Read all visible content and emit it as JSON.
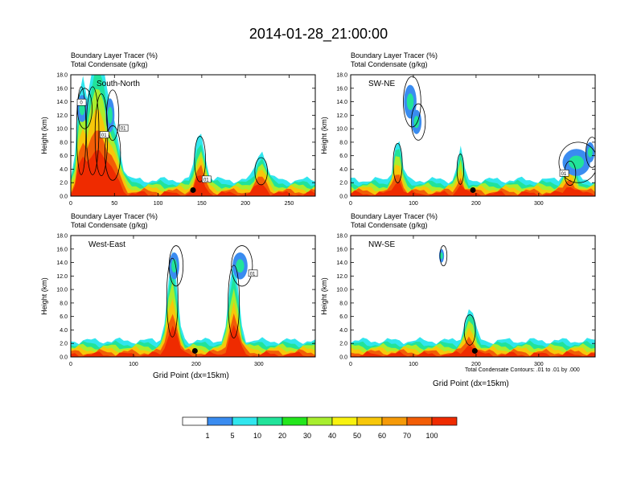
{
  "figure_title": "2014-01-28_21:00:00",
  "panel_header": {
    "line1": "Boundary Layer Tracer   (%)",
    "line2": "Total Condensate   (g/kg)"
  },
  "footnote": "Total Condensate Contours: .01 to .01 by .000",
  "colorbar": {
    "labels": [
      "1",
      "5",
      "10",
      "20",
      "30",
      "40",
      "50",
      "60",
      "70",
      "100"
    ],
    "colors": [
      "#ffffff",
      "#3a8cf0",
      "#31e6ee",
      "#21e39a",
      "#23e61c",
      "#a8ee2e",
      "#f8f20f",
      "#f7c70a",
      "#f59a08",
      "#f25d06",
      "#ef2b00"
    ]
  },
  "chart_data": [
    {
      "type": "heatmap",
      "name": "South-North",
      "label": "South-North",
      "ylabel": "Height (km)",
      "xlabel": "",
      "ylim": [
        0,
        18
      ],
      "xlim": [
        0,
        280
      ],
      "xticks": [
        0,
        50,
        100,
        150,
        200,
        250
      ],
      "xtick_labels": [
        "0",
        "50",
        "100",
        "150",
        "200",
        "250"
      ],
      "yticks": [
        0,
        2,
        4,
        6,
        8,
        10,
        12,
        14,
        16,
        18
      ],
      "ytick_labels": [
        "0.0",
        "2.0",
        "4.0",
        "6.0",
        "8.0",
        "10.0",
        "12.0",
        "14.0",
        "16.0",
        "18.0"
      ],
      "marker_x": 140,
      "plumes": [
        {
          "x": 12,
          "w": 6,
          "h": 14.5
        },
        {
          "x": 25,
          "w": 8,
          "h": 14.5
        },
        {
          "x": 35,
          "w": 8,
          "h": 13.5
        },
        {
          "x": 48,
          "w": 10,
          "h": 9
        },
        {
          "x": 148,
          "w": 7,
          "h": 7.5
        },
        {
          "x": 218,
          "w": 8,
          "h": 4.5
        }
      ],
      "clouds": [
        {
          "x": 13,
          "y": 13,
          "rx": 6,
          "ry": 2,
          "c": "#3a8cf0"
        },
        {
          "x": 45,
          "y": 12,
          "rx": 5,
          "ry": 2.5,
          "c": "#3a8cf0"
        }
      ],
      "contour_labels": [
        {
          "x": 12,
          "y": 13.8,
          "t": "0"
        },
        {
          "x": 38,
          "y": 9,
          "t": "01"
        },
        {
          "x": 60,
          "y": 10,
          "t": "01"
        },
        {
          "x": 155,
          "y": 2.4,
          "t": "01"
        }
      ]
    },
    {
      "type": "heatmap",
      "name": "SW-NE",
      "label": "SW-NE",
      "ylabel": "Height (km)",
      "xlabel": "",
      "ylim": [
        0,
        18
      ],
      "xlim": [
        0,
        390
      ],
      "xticks": [
        0,
        100,
        200,
        300
      ],
      "xtick_labels": [
        "0",
        "100",
        "200",
        "300"
      ],
      "yticks": [
        0,
        2,
        4,
        6,
        8,
        10,
        12,
        14,
        16,
        18
      ],
      "ytick_labels": [
        "0.0",
        "2.0",
        "4.0",
        "6.0",
        "8.0",
        "10.0",
        "12.0",
        "14.0",
        "16.0",
        "18.0"
      ],
      "marker_x": 195,
      "plumes": [
        {
          "x": 75,
          "w": 8,
          "h": 6.5
        },
        {
          "x": 175,
          "w": 6,
          "h": 5
        },
        {
          "x": 350,
          "w": 10,
          "h": 4
        }
      ],
      "clouds": [
        {
          "x": 95,
          "y": 14,
          "rx": 10,
          "ry": 2.5,
          "c": "#3a8cf0"
        },
        {
          "x": 105,
          "y": 11,
          "rx": 8,
          "ry": 1.8,
          "c": "#3a8cf0"
        },
        {
          "x": 360,
          "y": 5,
          "rx": 22,
          "ry": 2,
          "c": "#3a8cf0"
        },
        {
          "x": 382,
          "y": 6.5,
          "rx": 7,
          "ry": 1.5,
          "c": "#3a8cf0"
        }
      ],
      "contour_labels": [
        {
          "x": 340,
          "y": 3.3,
          "t": "01"
        }
      ]
    },
    {
      "type": "heatmap",
      "name": "West-East",
      "label": "West-East",
      "ylabel": "Height (km)",
      "xlabel": "Grid Point (dx=15km)",
      "ylim": [
        0,
        18
      ],
      "xlim": [
        0,
        390
      ],
      "xticks": [
        0,
        100,
        200,
        300
      ],
      "xtick_labels": [
        "0",
        "100",
        "200",
        "300"
      ],
      "yticks": [
        0,
        2,
        4,
        6,
        8,
        10,
        12,
        14,
        16,
        18
      ],
      "ytick_labels": [
        "0.0",
        "2.0",
        "4.0",
        "6.0",
        "8.0",
        "10.0",
        "12.0",
        "14.0",
        "16.0",
        "18.0"
      ],
      "marker_x": 198,
      "plumes": [
        {
          "x": 162,
          "w": 10,
          "h": 13
        },
        {
          "x": 260,
          "w": 10,
          "h": 12
        }
      ],
      "clouds": [
        {
          "x": 165,
          "y": 13.5,
          "rx": 8,
          "ry": 2,
          "c": "#3a8cf0"
        },
        {
          "x": 270,
          "y": 13.5,
          "rx": 12,
          "ry": 2,
          "c": "#3a8cf0"
        }
      ],
      "contour_labels": [
        {
          "x": 290,
          "y": 12.3,
          "t": "01"
        }
      ]
    },
    {
      "type": "heatmap",
      "name": "NW-SE",
      "label": "NW-SE",
      "ylabel": "Height (km)",
      "xlabel": "Grid Point (dx=15km)",
      "ylim": [
        0,
        18
      ],
      "xlim": [
        0,
        390
      ],
      "xticks": [
        0,
        100,
        200,
        300
      ],
      "xtick_labels": [
        "0",
        "100",
        "200",
        "300"
      ],
      "yticks": [
        0,
        2,
        4,
        6,
        8,
        10,
        12,
        14,
        16,
        18
      ],
      "ytick_labels": [
        "0.0",
        "2.0",
        "4.0",
        "6.0",
        "8.0",
        "10.0",
        "12.0",
        "14.0",
        "16.0",
        "18.0"
      ],
      "marker_x": 198,
      "plumes": [
        {
          "x": 190,
          "w": 10,
          "h": 5
        }
      ],
      "clouds": [
        {
          "x": 145,
          "y": 15,
          "rx": 4,
          "ry": 1,
          "c": "#3a8cf0"
        }
      ],
      "contour_labels": []
    }
  ]
}
